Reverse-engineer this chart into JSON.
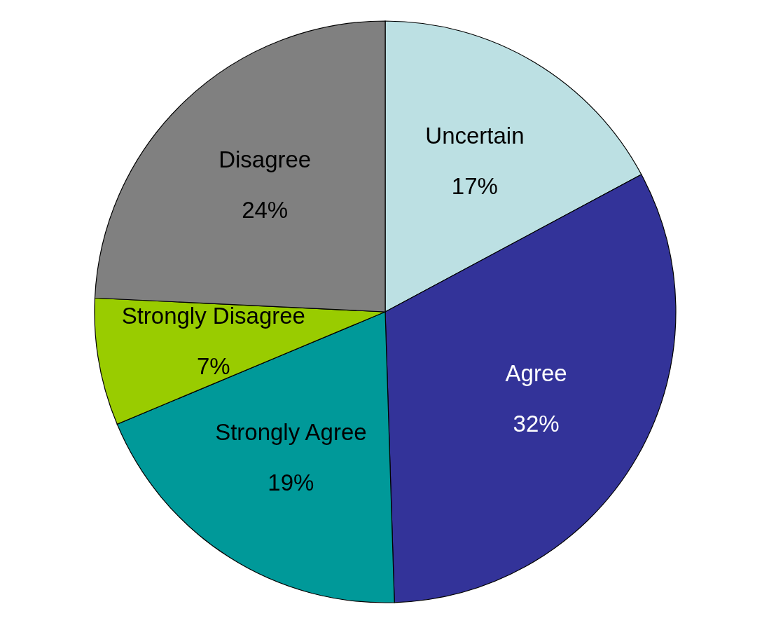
{
  "chart_data": {
    "type": "pie",
    "categories": [
      "Uncertain",
      "Agree",
      "Strongly Agree",
      "Strongly Disagree",
      "Disagree"
    ],
    "values": [
      17,
      32,
      19,
      7,
      24
    ],
    "colors": [
      "#bce0e3",
      "#333399",
      "#009999",
      "#99cc00",
      "#808080"
    ],
    "value_labels": [
      "17%",
      "32%",
      "19%",
      "7%",
      "24%"
    ],
    "legend": false
  }
}
